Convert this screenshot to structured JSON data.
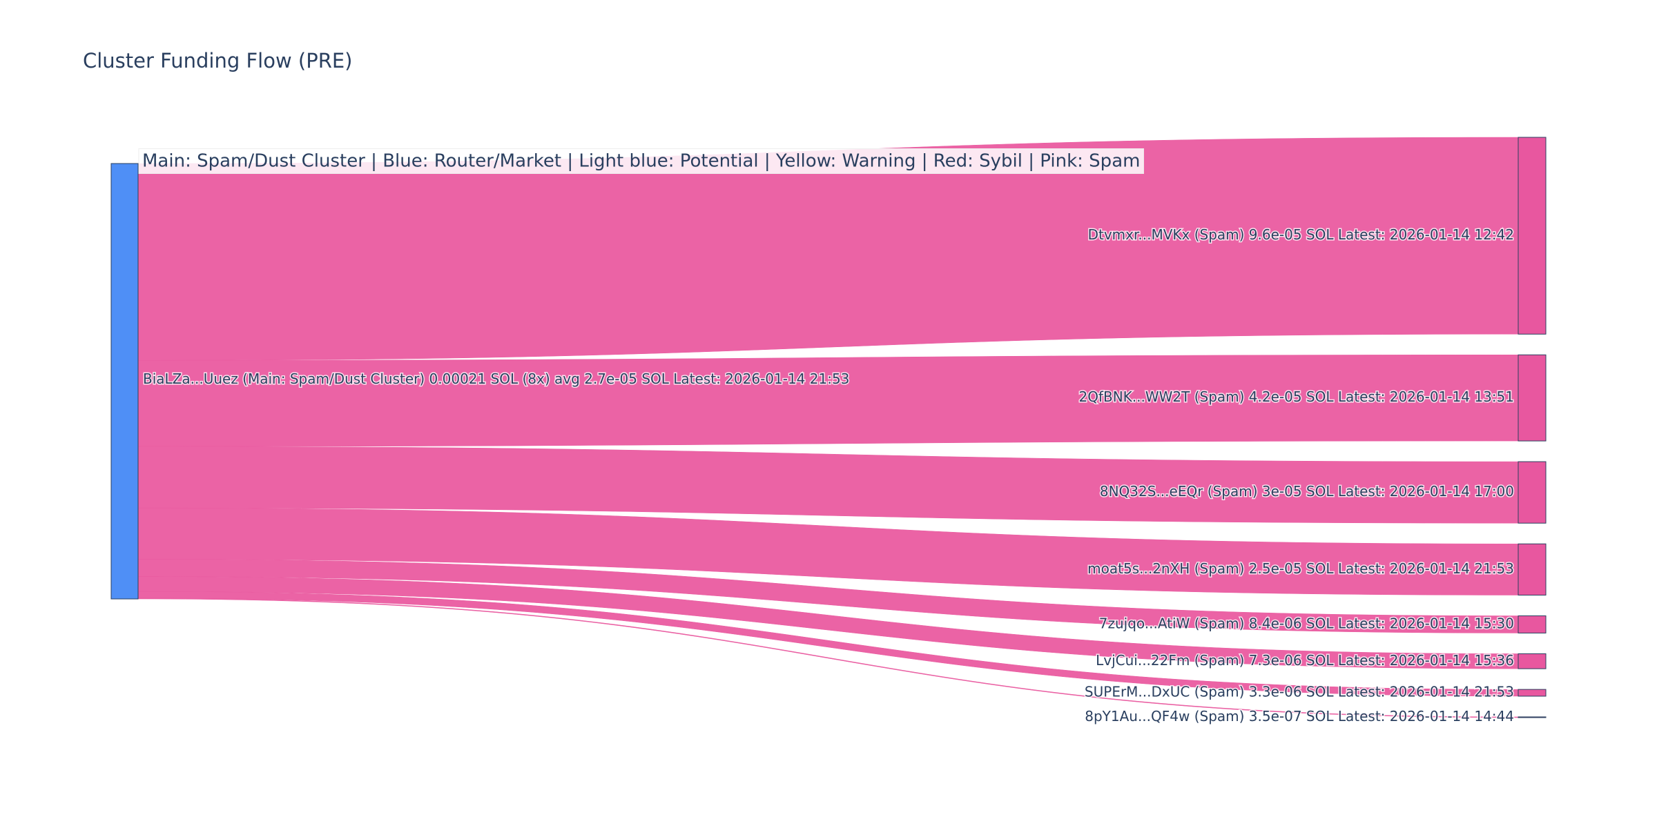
{
  "chart_data": {
    "type": "sankey",
    "title": "Cluster Funding Flow (PRE)",
    "annotation": "Main: Spam/Dust Cluster  |  Blue: Router/Market | Light blue: Potential | Yellow: Warning | Red: Sybil | Pink: Spam",
    "source": {
      "label": "BiaLZa...Uuez (Main: Spam/Dust Cluster) 0.00021 SOL (8x) avg 2.7e-05 SOL Latest: 2026-01-14 21:53",
      "color": "#4f8ff6"
    },
    "link_color": "#ea5ba0",
    "targets": [
      {
        "label": "Dtvmxr...MVKx (Spam) 9.6e-05 SOL Latest: 2026-01-14 12:42",
        "value": 9.6e-05,
        "color": "#e8579f"
      },
      {
        "label": "2QfBNK...WW2T (Spam) 4.2e-05 SOL Latest: 2026-01-14 13:51",
        "value": 4.2e-05,
        "color": "#e8579f"
      },
      {
        "label": "8NQ32S...eEQr (Spam) 3e-05 SOL Latest: 2026-01-14 17:00",
        "value": 3e-05,
        "color": "#e8579f"
      },
      {
        "label": "moat5s...2nXH (Spam) 2.5e-05 SOL Latest: 2026-01-14 21:53",
        "value": 2.5e-05,
        "color": "#e8579f"
      },
      {
        "label": "7zujqo...AtiW (Spam) 8.4e-06 SOL Latest: 2026-01-14 15:30",
        "value": 8.4e-06,
        "color": "#e8579f"
      },
      {
        "label": "LvjCui...22Fm (Spam) 7.3e-06 SOL Latest: 2026-01-14 15:36",
        "value": 7.3e-06,
        "color": "#e8579f"
      },
      {
        "label": "SUPErM...DxUC (Spam) 3.3e-06 SOL Latest: 2026-01-14 21:53",
        "value": 3.3e-06,
        "color": "#e8579f"
      },
      {
        "label": "8pY1Au...QF4w (Spam) 3.5e-07 SOL Latest: 2026-01-14 14:44",
        "value": 3.5e-07,
        "color": "#e8579f"
      }
    ]
  }
}
